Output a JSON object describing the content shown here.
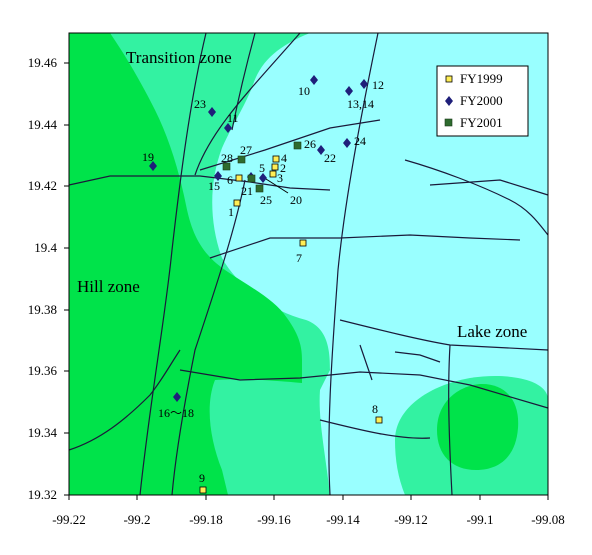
{
  "map": {
    "x_ticks": [
      "-99.22",
      "-99.2",
      "-99.18",
      "-99.16",
      "-99.14",
      "-99.12",
      "-99.1",
      "-99.08"
    ],
    "y_ticks": [
      "19.46",
      "19.44",
      "19.42",
      "19.4",
      "19.38",
      "19.36",
      "19.34",
      "19.32"
    ],
    "zones": {
      "hill": "Hill zone",
      "transition": "Transition zone",
      "lake": "Lake zone"
    },
    "colors": {
      "hill": "#00e34a",
      "transition": "#33f2a2",
      "lake": "#99ffff",
      "fy1999": "#ffee55",
      "fy2000": "#1f1f7a",
      "fy2001": "#2e6b2e"
    },
    "legend": {
      "fy1999": "FY1999",
      "fy2000": "FY2000",
      "fy2001": "FY2001"
    },
    "site_labels": {
      "s1": "1",
      "s2": "2",
      "s3": "3",
      "s4": "4",
      "s5": "5",
      "s6": "6",
      "s7": "7",
      "s8": "8",
      "s9": "9",
      "s10": "10",
      "s11": "11",
      "s12": "12",
      "s13_14": "13,14",
      "s15": "15",
      "s16_18": "16～18",
      "s19": "19",
      "s20": "20",
      "s21": "21",
      "s22": "22",
      "s23": "23",
      "s24": "24",
      "s25": "25",
      "s26": "26",
      "s27": "27",
      "s28": "28"
    }
  }
}
